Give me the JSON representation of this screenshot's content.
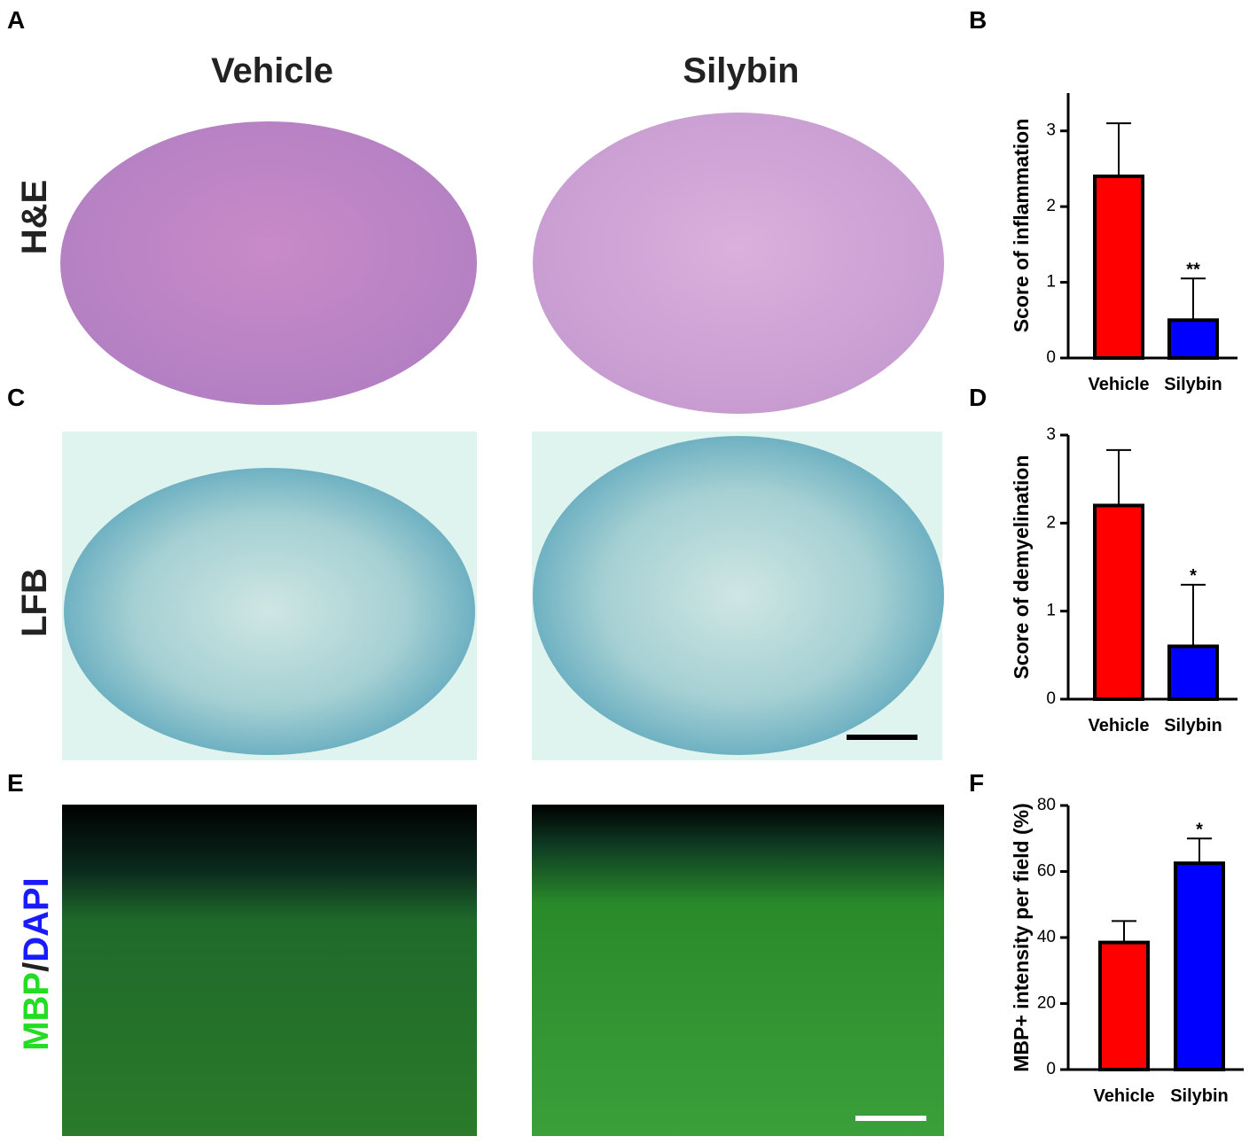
{
  "panel_letters": [
    "A",
    "B",
    "C",
    "D",
    "E",
    "F"
  ],
  "columns": [
    "Vehicle",
    "Silybin"
  ],
  "rows": [
    "H&E",
    "LFB"
  ],
  "fluorescence_label": [
    "MBP",
    "/",
    "DAPI"
  ],
  "chart_data": [
    {
      "type": "bar",
      "y_label": "Score of inflammation",
      "categories": [
        "Vehicle",
        "Silybin"
      ],
      "values": [
        2.4,
        0.5
      ],
      "errors": [
        0.7,
        0.55
      ],
      "colors": [
        "#ff0000",
        "#0000ff"
      ],
      "annotations": [
        null,
        "**"
      ],
      "ylim": [
        0,
        3.5
      ],
      "yticks": [
        0,
        1,
        2,
        3
      ]
    },
    {
      "type": "bar",
      "y_label": "Score of demyelination",
      "categories": [
        "Vehicle",
        "Silybin"
      ],
      "values": [
        2.2,
        0.6
      ],
      "errors": [
        0.63,
        0.7
      ],
      "colors": [
        "#ff0000",
        "#0000ff"
      ],
      "annotations": [
        null,
        "*"
      ],
      "ylim": [
        0,
        3
      ],
      "yticks": [
        0,
        1,
        2,
        3
      ]
    },
    {
      "type": "bar",
      "y_label": "MBP+ intensity per field (%)",
      "categories": [
        "Vehicle",
        "Silybin"
      ],
      "values": [
        38.5,
        62.5
      ],
      "errors": [
        6.5,
        7.5
      ],
      "colors": [
        "#ff0000",
        "#0000ff"
      ],
      "annotations": [
        null,
        "*"
      ],
      "ylim": [
        0,
        80
      ],
      "yticks": [
        0,
        20,
        40,
        60,
        80
      ]
    }
  ]
}
